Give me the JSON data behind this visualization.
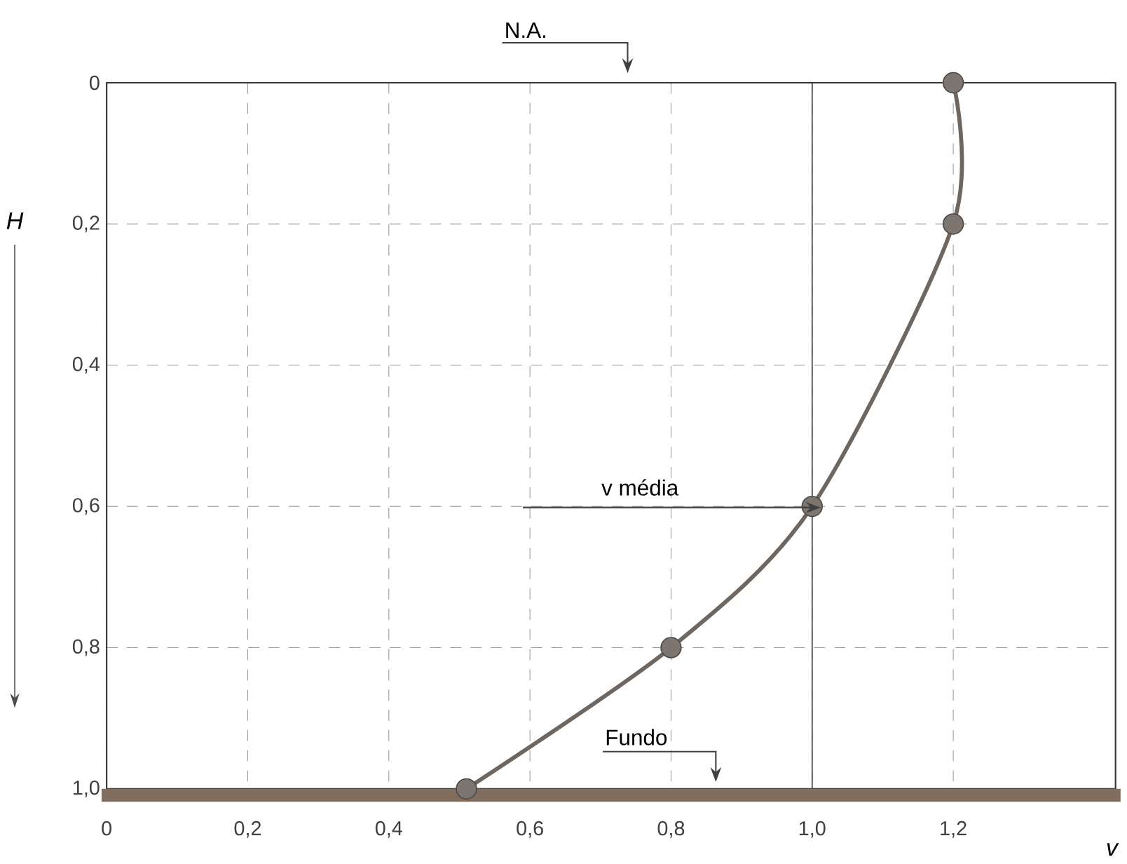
{
  "chart_data": {
    "type": "line",
    "xlabel": "v",
    "ylabel": "H",
    "xlim": [
      0,
      1.43
    ],
    "ylim": [
      1.0,
      0
    ],
    "xticks": [
      {
        "value": 0,
        "label": "0"
      },
      {
        "value": 0.2,
        "label": "0,2"
      },
      {
        "value": 0.4,
        "label": "0,4"
      },
      {
        "value": 0.6,
        "label": "0,6"
      },
      {
        "value": 0.8,
        "label": "0,8"
      },
      {
        "value": 1.0,
        "label": "1,0"
      },
      {
        "value": 1.2,
        "label": "1,2"
      }
    ],
    "yticks": [
      {
        "value": 0,
        "label": "0"
      },
      {
        "value": 0.2,
        "label": "0,2"
      },
      {
        "value": 0.4,
        "label": "0,4"
      },
      {
        "value": 0.6,
        "label": "0,6"
      },
      {
        "value": 0.8,
        "label": "0,8"
      },
      {
        "value": 1.0,
        "label": "1,0"
      }
    ],
    "grid": true,
    "marker": "circle",
    "line_style": "solid",
    "series": [
      {
        "color": "#6e6660",
        "x": [
          1.2,
          1.2,
          1.0,
          0.8,
          0.51
        ],
        "values": [
          0,
          0.2,
          0.6,
          0.8,
          1.0
        ]
      }
    ],
    "ref_lines": [
      {
        "axis": "x",
        "value": 1.0,
        "color": "#333333",
        "line_style": "solid"
      }
    ],
    "annotations": [
      "N.A.",
      "v média",
      "Fundo"
    ]
  }
}
